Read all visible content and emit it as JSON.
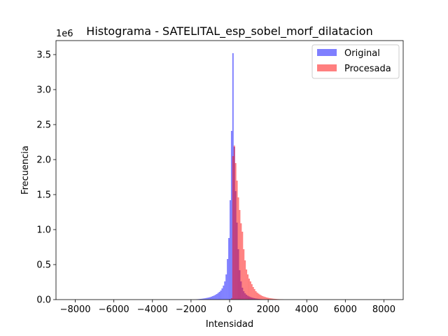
{
  "chart_data": {
    "type": "histogram",
    "title": "Histograma - SATELITAL_esp_sobel_morf_dilatacion",
    "xlabel": "Intensidad",
    "ylabel": "Frecuencia",
    "y_scale_label": "1e6",
    "xlim": [
      -9000,
      9000
    ],
    "ylim": [
      0,
      3.7
    ],
    "y_unit_multiplier": 1000000,
    "xticks": [
      -8000,
      -6000,
      -4000,
      -2000,
      0,
      2000,
      4000,
      6000,
      8000
    ],
    "xtick_labels": [
      "−8000",
      "−6000",
      "−4000",
      "−2000",
      "0",
      "2000",
      "4000",
      "6000",
      "8000"
    ],
    "yticks": [
      0.0,
      0.5,
      1.0,
      1.5,
      2.0,
      2.5,
      3.0,
      3.5
    ],
    "ytick_labels": [
      "0.0",
      "0.5",
      "1.0",
      "1.5",
      "2.0",
      "2.5",
      "3.0",
      "3.5"
    ],
    "legend_position": "top-right",
    "bin_width": 70,
    "series": [
      {
        "name": "Original",
        "color": "#0000ff",
        "alpha": 0.5,
        "bins": [
          [
            -1750,
            0.004
          ],
          [
            -1680,
            0.006
          ],
          [
            -1610,
            0.008
          ],
          [
            -1540,
            0.01
          ],
          [
            -1470,
            0.012
          ],
          [
            -1400,
            0.015
          ],
          [
            -1330,
            0.018
          ],
          [
            -1260,
            0.022
          ],
          [
            -1190,
            0.026
          ],
          [
            -1120,
            0.03
          ],
          [
            -1050,
            0.035
          ],
          [
            -980,
            0.042
          ],
          [
            -910,
            0.05
          ],
          [
            -840,
            0.058
          ],
          [
            -770,
            0.068
          ],
          [
            -700,
            0.08
          ],
          [
            -630,
            0.095
          ],
          [
            -560,
            0.11
          ],
          [
            -490,
            0.13
          ],
          [
            -420,
            0.16
          ],
          [
            -350,
            0.2
          ],
          [
            -280,
            0.26
          ],
          [
            -210,
            0.36
          ],
          [
            -140,
            0.58
          ],
          [
            -70,
            0.88
          ],
          [
            0,
            1.42
          ],
          [
            70,
            2.41
          ],
          [
            140,
            3.52
          ],
          [
            210,
            2.18
          ],
          [
            280,
            1.55
          ],
          [
            350,
            1.1
          ],
          [
            420,
            0.72
          ],
          [
            490,
            0.42
          ],
          [
            560,
            0.26
          ],
          [
            630,
            0.17
          ],
          [
            700,
            0.12
          ],
          [
            770,
            0.09
          ],
          [
            840,
            0.07
          ],
          [
            910,
            0.055
          ],
          [
            980,
            0.045
          ],
          [
            1050,
            0.037
          ],
          [
            1120,
            0.03
          ],
          [
            1190,
            0.025
          ],
          [
            1260,
            0.02
          ],
          [
            1330,
            0.016
          ],
          [
            1400,
            0.013
          ],
          [
            1470,
            0.01
          ],
          [
            1540,
            0.008
          ],
          [
            1610,
            0.006
          ],
          [
            1680,
            0.005
          ],
          [
            1750,
            0.004
          ],
          [
            1820,
            0.003
          ],
          [
            1890,
            0.002
          ],
          [
            1960,
            0.002
          ]
        ]
      },
      {
        "name": "Procesada",
        "color": "#ff0000",
        "alpha": 0.5,
        "bins": [
          [
            70,
            0.02
          ],
          [
            140,
            2.05
          ],
          [
            210,
            2.2
          ],
          [
            280,
            1.95
          ],
          [
            350,
            1.7
          ],
          [
            420,
            1.46
          ],
          [
            490,
            1.28
          ],
          [
            560,
            1.09
          ],
          [
            630,
            0.97
          ],
          [
            700,
            0.72
          ],
          [
            770,
            0.56
          ],
          [
            840,
            0.43
          ],
          [
            910,
            0.36
          ],
          [
            980,
            0.3
          ],
          [
            1050,
            0.26
          ],
          [
            1120,
            0.22
          ],
          [
            1190,
            0.18
          ],
          [
            1260,
            0.15
          ],
          [
            1330,
            0.12
          ],
          [
            1400,
            0.1
          ],
          [
            1470,
            0.085
          ],
          [
            1540,
            0.072
          ],
          [
            1610,
            0.06
          ],
          [
            1680,
            0.05
          ],
          [
            1750,
            0.043
          ],
          [
            1820,
            0.037
          ],
          [
            1890,
            0.031
          ],
          [
            1960,
            0.026
          ],
          [
            2030,
            0.022
          ],
          [
            2100,
            0.019
          ],
          [
            2170,
            0.016
          ],
          [
            2240,
            0.013
          ],
          [
            2310,
            0.011
          ],
          [
            2380,
            0.009
          ],
          [
            2450,
            0.007
          ],
          [
            2520,
            0.006
          ],
          [
            2590,
            0.005
          ],
          [
            2660,
            0.004
          ],
          [
            2730,
            0.003
          ]
        ]
      }
    ]
  }
}
